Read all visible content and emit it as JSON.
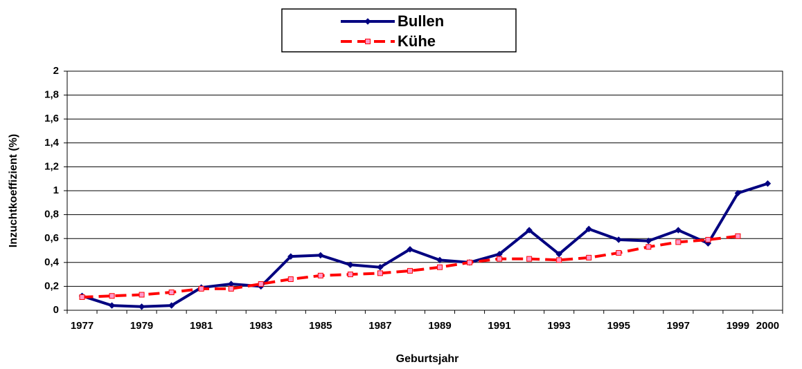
{
  "chart_data": {
    "type": "line",
    "x_label": "Geburtsjahr",
    "y_label": "Inzuchtkoeffizient (%)",
    "categories": [
      "1977",
      null,
      "1979",
      null,
      "1981",
      null,
      "1983",
      null,
      "1985",
      null,
      "1987",
      null,
      "1989",
      null,
      "1991",
      null,
      "1993",
      null,
      "1995",
      null,
      "1997",
      null,
      "1999",
      "2000"
    ],
    "series": [
      {
        "name": "Bullen",
        "color": "#000080",
        "dashed": false,
        "marker": "diamond",
        "values": [
          0.12,
          0.04,
          0.03,
          0.04,
          0.19,
          0.22,
          0.2,
          0.45,
          0.46,
          0.38,
          0.36,
          0.51,
          0.42,
          0.4,
          0.47,
          0.67,
          0.47,
          0.68,
          0.59,
          0.58,
          0.67,
          0.56,
          0.98,
          1.06
        ]
      },
      {
        "name": "Kühe",
        "color": "#ff0000",
        "dashed": true,
        "marker": "square",
        "values": [
          0.11,
          0.12,
          0.13,
          0.15,
          0.18,
          0.18,
          0.22,
          0.26,
          0.29,
          0.3,
          0.31,
          0.33,
          0.36,
          0.4,
          0.43,
          0.43,
          0.42,
          0.44,
          0.48,
          0.53,
          0.57,
          0.59,
          0.62,
          null
        ]
      }
    ],
    "ylim": [
      0,
      2
    ],
    "yticks": [
      0,
      {
        "value": 0.2,
        "label": "0,2"
      },
      {
        "value": 0.4,
        "label": "0,4"
      },
      {
        "value": 0.6,
        "label": "0,6"
      },
      {
        "value": 0.8,
        "label": "0,8"
      },
      1,
      {
        "value": 1.2,
        "label": "1,2"
      },
      {
        "value": 1.4,
        "label": "1,4"
      },
      {
        "value": 1.6,
        "label": "1,6"
      },
      {
        "value": 1.8,
        "label": "1,8"
      },
      2
    ],
    "grid": true,
    "legend": "top"
  }
}
